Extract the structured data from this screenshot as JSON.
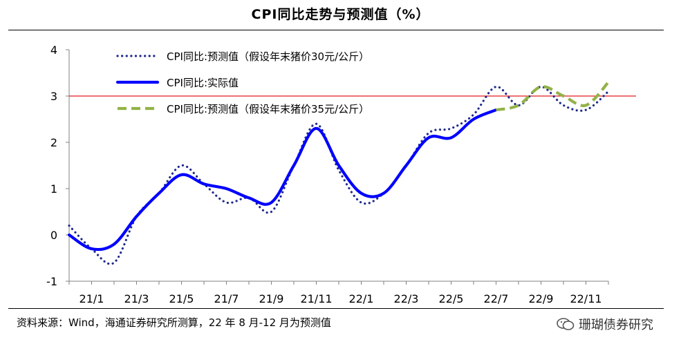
{
  "title": "CPI同比走势与预测值（%）",
  "source": "资料来源：Wind，海通证券研究所测算，22 年 8 月-12 月为预测值",
  "watermark": "珊瑚债券研究",
  "watermark_icon": "wechat-icon",
  "colors": {
    "actual": "#0000ff",
    "forecast30": "#1f2a8c",
    "forecast35": "#92b347",
    "refline": "#e31a1c",
    "axis": "#808080"
  },
  "chart_data": {
    "type": "line",
    "ylim": [
      -1,
      4
    ],
    "yticks": [
      -1,
      0,
      1,
      2,
      3,
      4
    ],
    "xlabels": [
      "21/1",
      "21/3",
      "21/5",
      "21/7",
      "21/9",
      "21/11",
      "22/1",
      "22/3",
      "22/5",
      "22/7",
      "22/9",
      "22/11"
    ],
    "reference_line": 3,
    "legend_position": "top-left",
    "series": [
      {
        "name": "CPI同比:预测值（假设年末猪价30元/公斤）",
        "style": "dotted",
        "x": [
          "20/12",
          "21/1",
          "21/2",
          "21/3",
          "21/4",
          "21/5",
          "21/6",
          "21/7",
          "21/8",
          "21/9",
          "21/10",
          "21/11",
          "21/12",
          "22/1",
          "22/2",
          "22/3",
          "22/4",
          "22/5",
          "22/6",
          "22/7",
          "22/8",
          "22/9",
          "22/10",
          "22/11",
          "22/12"
        ],
        "values": [
          0.2,
          -0.3,
          -0.6,
          0.4,
          0.9,
          1.5,
          1.1,
          0.7,
          0.8,
          0.5,
          1.5,
          2.4,
          1.4,
          0.7,
          0.9,
          1.5,
          2.2,
          2.3,
          2.6,
          3.2,
          2.8,
          3.2,
          2.8,
          2.7,
          3.1
        ]
      },
      {
        "name": "CPI同比:实际值",
        "style": "solid",
        "x": [
          "20/12",
          "21/1",
          "21/2",
          "21/3",
          "21/4",
          "21/5",
          "21/6",
          "21/7",
          "21/8",
          "21/9",
          "21/10",
          "21/11",
          "21/12",
          "22/1",
          "22/2",
          "22/3",
          "22/4",
          "22/5",
          "22/6",
          "22/7"
        ],
        "values": [
          0.0,
          -0.3,
          -0.2,
          0.4,
          0.9,
          1.3,
          1.1,
          1.0,
          0.8,
          0.7,
          1.5,
          2.3,
          1.5,
          0.9,
          0.9,
          1.5,
          2.1,
          2.1,
          2.5,
          2.7
        ]
      },
      {
        "name": "CPI同比:预测值（假设年末猪价35元/公斤）",
        "style": "dashed",
        "x": [
          "22/7",
          "22/8",
          "22/9",
          "22/10",
          "22/11",
          "22/12"
        ],
        "values": [
          2.7,
          2.8,
          3.2,
          3.0,
          2.8,
          3.3
        ]
      }
    ]
  }
}
